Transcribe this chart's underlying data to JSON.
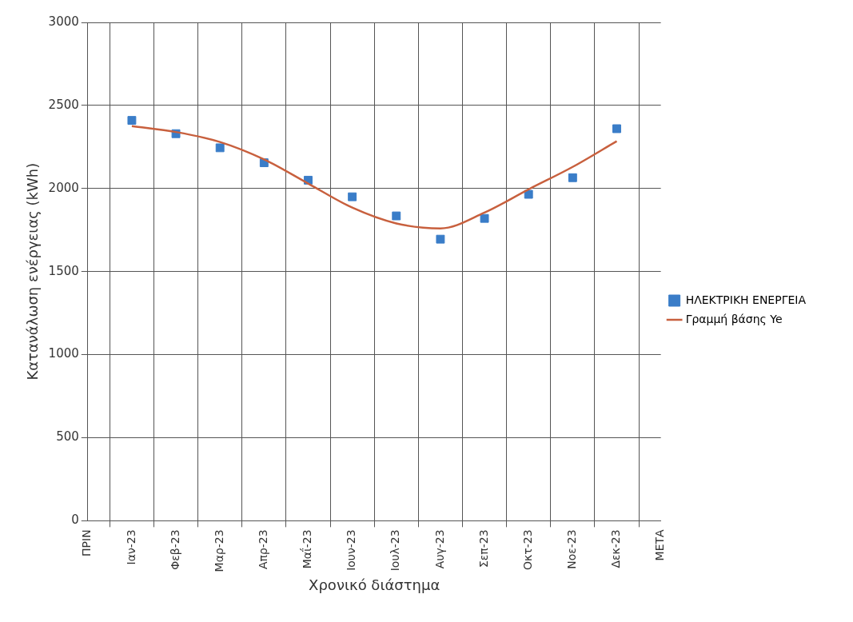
{
  "chart_data": {
    "type": "scatter",
    "xlabel": "Χρονικό διάστημα",
    "ylabel": "Κατανάλωση ενέργειας (kWh)",
    "categories": [
      "ΠΡΙΝ",
      "Ιαν-23",
      "Φεβ-23",
      "Μαρ-23",
      "Απρ-23",
      "Μαΐ-23",
      "Ιουν-23",
      "Ιουλ-23",
      "Αυγ-23",
      "Σεπ-23",
      "Οκτ-23",
      "Νοε-23",
      "Δεκ-23",
      "ΜΕΤΑ"
    ],
    "series": [
      {
        "name": "ΗΛΕΚΤΡΙΚΗ ΕΝΕΡΓΕΙΑ",
        "marker": "square",
        "color": "#3a7dc8",
        "values": [
          null,
          2410,
          2330,
          2245,
          2155,
          2050,
          1950,
          1835,
          1695,
          1820,
          1965,
          2065,
          2360,
          null
        ]
      },
      {
        "name": "Γραμμή βάσης Ye",
        "type": "line",
        "marker": "none",
        "line_style": "solid",
        "color": "#c8603e",
        "values": [
          null,
          2375,
          2340,
          2280,
          2175,
          2030,
          1885,
          1790,
          1760,
          1855,
          1995,
          2130,
          2285,
          null
        ]
      }
    ],
    "ylim": [
      0,
      3000
    ],
    "yticks": [
      0,
      500,
      1000,
      1500,
      2000,
      2500,
      3000
    ],
    "grid": true,
    "legend": "right"
  }
}
